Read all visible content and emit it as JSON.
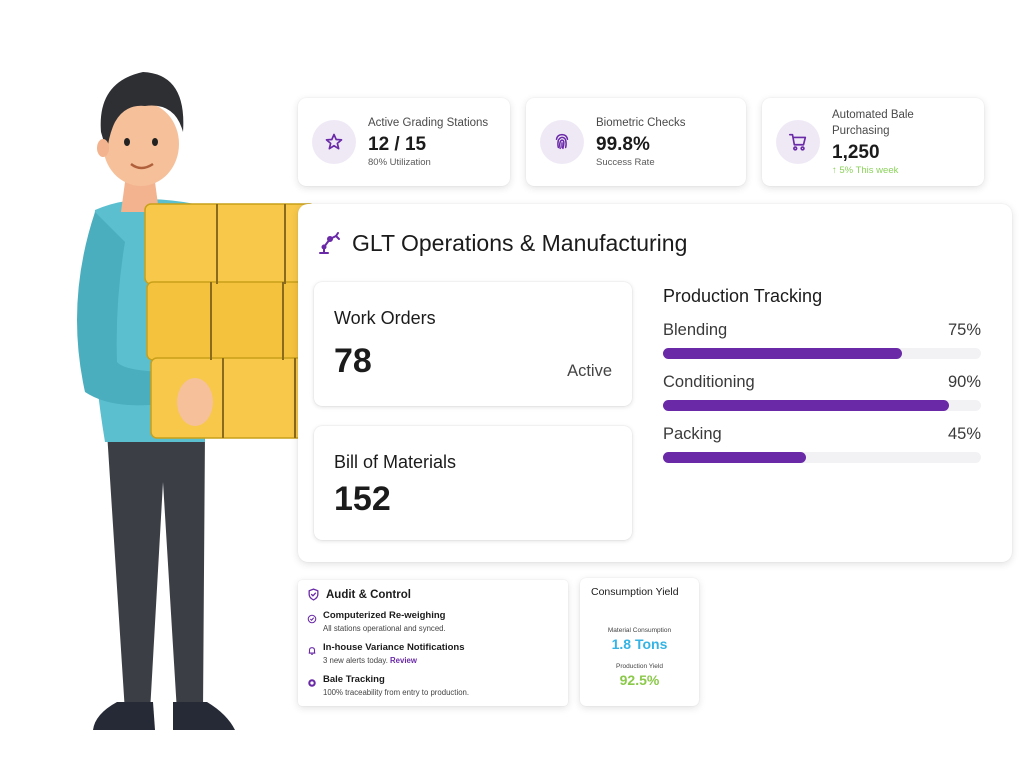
{
  "stats": [
    {
      "label": "Active Grading Stations",
      "value": "12 / 15",
      "sub": "80% Utilization",
      "icon": "star-icon"
    },
    {
      "label": "Biometric Checks",
      "value": "99.8%",
      "sub": "Success Rate",
      "icon": "fingerprint-icon"
    },
    {
      "label": "Automated Bale Purchasing",
      "value": "1,250",
      "sub": "5% This week",
      "icon": "cart-icon"
    }
  ],
  "main": {
    "title": "GLT Operations & Manufacturing",
    "work_orders": {
      "label": "Work Orders",
      "value": "78",
      "status": "Active"
    },
    "bom": {
      "label": "Bill of Materials",
      "value": "152"
    },
    "production": {
      "title": "Production Tracking",
      "items": [
        {
          "label": "Blending",
          "percent_label": "75%",
          "percent": 75
        },
        {
          "label": "Conditioning",
          "percent_label": "90%",
          "percent": 90
        },
        {
          "label": "Packing",
          "percent_label": "45%",
          "percent": 45
        }
      ]
    }
  },
  "audit": {
    "title": "Audit & Control",
    "items": [
      {
        "title": "Computerized Re-weighing",
        "desc": "All stations operational and synced.",
        "icon": "check-circle-icon"
      },
      {
        "title": "In-house Variance Notifications",
        "desc": "3 new alerts today.",
        "link": "Review",
        "icon": "bell-icon"
      },
      {
        "title": "Bale Tracking",
        "desc": "100% traceability from entry to production.",
        "icon": "tracking-icon"
      }
    ]
  },
  "consumption": {
    "title": "Consumption Yield",
    "material_label": "Material Consumption",
    "material_value": "1.8 Tons",
    "production_label": "Production Yield",
    "production_value": "92.5%"
  },
  "colors": {
    "accent": "#6a2aa8",
    "icon_bg": "#efe9f6",
    "blue": "#34b3e4",
    "green": "#8bc94a"
  }
}
